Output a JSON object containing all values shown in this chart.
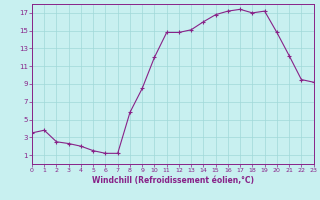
{
  "x": [
    0,
    1,
    2,
    3,
    4,
    5,
    6,
    7,
    8,
    9,
    10,
    11,
    12,
    13,
    14,
    15,
    16,
    17,
    18,
    19,
    20,
    21,
    22,
    23
  ],
  "y": [
    3.5,
    3.8,
    2.5,
    2.3,
    2.0,
    1.5,
    1.2,
    1.2,
    5.8,
    8.5,
    12.0,
    14.8,
    14.8,
    15.1,
    16.0,
    16.8,
    17.2,
    17.4,
    17.0,
    17.2,
    14.8,
    12.2,
    9.5,
    9.2
  ],
  "line_color": "#882288",
  "marker": "+",
  "marker_size": 3,
  "marker_lw": 0.8,
  "line_width": 0.8,
  "bg_color": "#c8f0f0",
  "grid_color": "#a0d8d8",
  "xlabel": "Windchill (Refroidissement éolien,°C)",
  "xlabel_color": "#882288",
  "tick_color": "#882288",
  "xlim": [
    0,
    23
  ],
  "ylim": [
    0,
    18
  ],
  "yticks": [
    1,
    3,
    5,
    7,
    9,
    11,
    13,
    15,
    17
  ],
  "xticks": [
    0,
    1,
    2,
    3,
    4,
    5,
    6,
    7,
    8,
    9,
    10,
    11,
    12,
    13,
    14,
    15,
    16,
    17,
    18,
    19,
    20,
    21,
    22,
    23
  ],
  "tick_fontsize": 4.5,
  "xlabel_fontsize": 5.5
}
